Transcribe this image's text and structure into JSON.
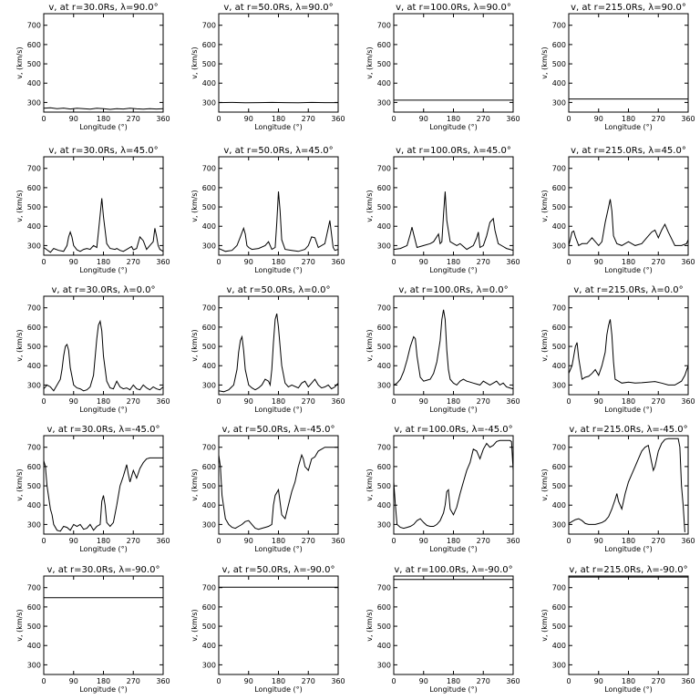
{
  "chart_data": [
    {
      "type": "line",
      "title": "v, at r=30.0Rs, λ=90.0°",
      "xlabel": "Longitude (°)",
      "ylabel": "v, (km/s)",
      "xlim": [
        0,
        360
      ],
      "ylim": [
        250,
        760
      ],
      "x": [
        0,
        20,
        40,
        60,
        80,
        100,
        120,
        140,
        160,
        180,
        200,
        220,
        240,
        260,
        280,
        300,
        320,
        340,
        360
      ],
      "y": [
        270,
        272,
        268,
        271,
        266,
        270,
        268,
        265,
        270,
        268,
        264,
        268,
        266,
        270,
        267,
        265,
        268,
        266,
        268
      ]
    },
    {
      "type": "line",
      "title": "v, at r=50.0Rs, λ=90.0°",
      "xlabel": "Longitude (°)",
      "ylabel": "v, (km/s)",
      "xlim": [
        0,
        360
      ],
      "ylim": [
        250,
        760
      ],
      "x": [
        0,
        40,
        80,
        120,
        160,
        200,
        240,
        280,
        320,
        360
      ],
      "y": [
        299,
        300,
        298,
        299,
        300,
        299,
        298,
        300,
        299,
        299
      ]
    },
    {
      "type": "line",
      "title": "v, at r=100.0Rs, λ=90.0°",
      "xlabel": "Longitude (°)",
      "ylabel": "v, (km/s)",
      "xlim": [
        0,
        360
      ],
      "ylim": [
        250,
        760
      ],
      "x": [
        0,
        360
      ],
      "y": [
        312,
        312
      ]
    },
    {
      "type": "line",
      "title": "v, at r=215.0Rs, λ=90.0°",
      "xlabel": "Longitude (°)",
      "ylabel": "v, (km/s)",
      "xlim": [
        0,
        360
      ],
      "ylim": [
        250,
        760
      ],
      "x": [
        0,
        360
      ],
      "y": [
        318,
        318
      ]
    },
    {
      "type": "line",
      "title": "v, at r=30.0Rs, λ=45.0°",
      "xlabel": "Longitude (°)",
      "ylabel": "v, (km/s)",
      "xlim": [
        0,
        360
      ],
      "ylim": [
        250,
        760
      ],
      "x": [
        0,
        10,
        20,
        30,
        45,
        60,
        70,
        75,
        80,
        85,
        90,
        100,
        110,
        120,
        130,
        140,
        150,
        160,
        165,
        170,
        175,
        180,
        190,
        200,
        215,
        220,
        230,
        240,
        255,
        265,
        270,
        280,
        290,
        300,
        310,
        320,
        330,
        335,
        340,
        345,
        350,
        360
      ],
      "y": [
        290,
        278,
        265,
        285,
        275,
        270,
        300,
        345,
        370,
        345,
        300,
        278,
        270,
        280,
        285,
        280,
        300,
        290,
        370,
        460,
        545,
        450,
        310,
        285,
        280,
        285,
        275,
        270,
        285,
        295,
        278,
        285,
        345,
        325,
        280,
        300,
        320,
        390,
        350,
        300,
        280,
        270
      ]
    },
    {
      "type": "line",
      "title": "v, at r=50.0Rs, λ=45.0°",
      "xlabel": "Longitude (°)",
      "ylabel": "v, (km/s)",
      "xlim": [
        0,
        360
      ],
      "ylim": [
        250,
        760
      ],
      "x": [
        0,
        20,
        40,
        55,
        65,
        75,
        80,
        85,
        90,
        100,
        120,
        140,
        150,
        160,
        170,
        175,
        180,
        185,
        190,
        200,
        220,
        240,
        260,
        270,
        280,
        290,
        300,
        320,
        330,
        335,
        340,
        345,
        350,
        360
      ],
      "y": [
        285,
        270,
        275,
        300,
        345,
        390,
        360,
        300,
        290,
        280,
        285,
        300,
        320,
        280,
        290,
        420,
        580,
        480,
        330,
        280,
        275,
        270,
        280,
        300,
        345,
        340,
        290,
        310,
        390,
        430,
        360,
        290,
        275,
        280
      ]
    },
    {
      "type": "line",
      "title": "v, at r=100.0Rs, λ=45.0°",
      "xlabel": "Longitude (°)",
      "ylabel": "v, (km/s)",
      "xlim": [
        0,
        360
      ],
      "ylim": [
        250,
        760
      ],
      "x": [
        0,
        20,
        40,
        50,
        55,
        60,
        70,
        90,
        110,
        120,
        135,
        140,
        145,
        150,
        155,
        160,
        170,
        190,
        200,
        220,
        240,
        250,
        255,
        260,
        270,
        280,
        290,
        300,
        305,
        315,
        330,
        340,
        350,
        360
      ],
      "y": [
        280,
        285,
        300,
        360,
        395,
        360,
        290,
        300,
        310,
        320,
        360,
        310,
        320,
        460,
        580,
        430,
        320,
        300,
        310,
        280,
        300,
        340,
        370,
        290,
        300,
        350,
        420,
        440,
        380,
        310,
        295,
        285,
        280,
        275
      ]
    },
    {
      "type": "line",
      "title": "v, at r=215.0Rs, λ=45.0°",
      "xlabel": "Longitude (°)",
      "ylabel": "v, (km/s)",
      "xlim": [
        0,
        360
      ],
      "ylim": [
        250,
        760
      ],
      "x": [
        0,
        10,
        15,
        20,
        30,
        40,
        55,
        70,
        90,
        100,
        110,
        120,
        125,
        130,
        135,
        145,
        160,
        180,
        200,
        220,
        235,
        250,
        260,
        270,
        280,
        290,
        300,
        320,
        340,
        355,
        360
      ],
      "y": [
        300,
        370,
        375,
        345,
        300,
        310,
        310,
        340,
        300,
        320,
        420,
        500,
        540,
        480,
        350,
        310,
        300,
        320,
        300,
        310,
        340,
        370,
        380,
        340,
        380,
        410,
        370,
        300,
        300,
        310,
        330
      ]
    },
    {
      "type": "line",
      "title": "v, at r=30.0Rs, λ=0.0°",
      "xlabel": "Longitude (°)",
      "ylabel": "v, (km/s)",
      "xlim": [
        0,
        360
      ],
      "ylim": [
        250,
        760
      ],
      "x": [
        0,
        10,
        20,
        30,
        40,
        50,
        55,
        60,
        65,
        70,
        75,
        80,
        90,
        100,
        110,
        120,
        130,
        140,
        150,
        160,
        165,
        170,
        175,
        180,
        190,
        200,
        210,
        220,
        230,
        240,
        250,
        260,
        270,
        280,
        290,
        300,
        310,
        320,
        330,
        340,
        350,
        360
      ],
      "y": [
        280,
        300,
        290,
        270,
        300,
        330,
        380,
        450,
        500,
        510,
        480,
        390,
        300,
        285,
        280,
        270,
        275,
        290,
        350,
        540,
        610,
        630,
        580,
        450,
        320,
        285,
        280,
        320,
        290,
        280,
        285,
        275,
        300,
        280,
        275,
        300,
        285,
        275,
        290,
        280,
        275,
        290
      ]
    },
    {
      "type": "line",
      "title": "v, at r=50.0Rs, λ=0.0°",
      "xlabel": "Longitude (°)",
      "ylabel": "v, (km/s)",
      "xlim": [
        0,
        360
      ],
      "ylim": [
        250,
        760
      ],
      "x": [
        0,
        15,
        30,
        45,
        55,
        60,
        65,
        70,
        75,
        80,
        90,
        100,
        110,
        120,
        130,
        140,
        150,
        155,
        160,
        165,
        170,
        175,
        180,
        190,
        200,
        210,
        220,
        240,
        250,
        260,
        270,
        280,
        290,
        300,
        310,
        320,
        330,
        340,
        350,
        360
      ],
      "y": [
        270,
        265,
        275,
        300,
        380,
        470,
        530,
        550,
        480,
        380,
        300,
        285,
        275,
        285,
        300,
        330,
        320,
        300,
        380,
        520,
        640,
        670,
        600,
        400,
        310,
        290,
        300,
        285,
        310,
        320,
        290,
        310,
        330,
        300,
        285,
        290,
        300,
        280,
        290,
        310
      ]
    },
    {
      "type": "line",
      "title": "v, at r=100.0Rs, λ=0.0°",
      "xlabel": "Longitude (°)",
      "ylabel": "v, (km/s)",
      "xlim": [
        0,
        360
      ],
      "ylim": [
        250,
        760
      ],
      "x": [
        0,
        10,
        20,
        30,
        40,
        50,
        60,
        65,
        70,
        80,
        90,
        100,
        110,
        120,
        130,
        140,
        145,
        150,
        155,
        160,
        165,
        170,
        180,
        190,
        200,
        210,
        220,
        230,
        240,
        250,
        260,
        270,
        280,
        290,
        300,
        310,
        320,
        330,
        340,
        350,
        360
      ],
      "y": [
        300,
        310,
        330,
        370,
        430,
        500,
        550,
        540,
        450,
        340,
        320,
        325,
        330,
        360,
        420,
        530,
        640,
        690,
        640,
        480,
        380,
        330,
        310,
        300,
        320,
        330,
        320,
        315,
        310,
        305,
        300,
        320,
        310,
        300,
        310,
        320,
        300,
        310,
        290,
        285,
        280
      ]
    },
    {
      "type": "line",
      "title": "v, at r=215.0Rs, λ=0.0°",
      "xlabel": "Longitude (°)",
      "ylabel": "v, (km/s)",
      "xlim": [
        0,
        360
      ],
      "ylim": [
        250,
        760
      ],
      "x": [
        0,
        10,
        15,
        20,
        25,
        30,
        40,
        50,
        60,
        70,
        80,
        90,
        100,
        110,
        115,
        120,
        125,
        130,
        135,
        140,
        150,
        160,
        180,
        200,
        220,
        240,
        260,
        280,
        300,
        320,
        340,
        350,
        360
      ],
      "y": [
        360,
        400,
        450,
        500,
        520,
        440,
        330,
        340,
        345,
        360,
        380,
        350,
        400,
        470,
        560,
        610,
        640,
        560,
        420,
        330,
        320,
        310,
        315,
        310,
        312,
        315,
        318,
        310,
        300,
        300,
        320,
        350,
        400
      ]
    },
    {
      "type": "line",
      "title": "v, at r=30.0Rs, λ=-45.0°",
      "xlabel": "Longitude (°)",
      "ylabel": "v, (km/s)",
      "xlim": [
        0,
        360
      ],
      "ylim": [
        250,
        760
      ],
      "x": [
        0,
        5,
        10,
        20,
        25,
        30,
        40,
        50,
        60,
        70,
        80,
        90,
        100,
        110,
        120,
        130,
        140,
        150,
        160,
        170,
        175,
        180,
        185,
        190,
        200,
        210,
        220,
        230,
        240,
        250,
        255,
        260,
        270,
        280,
        290,
        300,
        310,
        320,
        330,
        340,
        350,
        360
      ],
      "y": [
        630,
        600,
        500,
        380,
        350,
        300,
        270,
        265,
        290,
        285,
        270,
        300,
        290,
        300,
        275,
        280,
        300,
        270,
        290,
        300,
        420,
        450,
        400,
        310,
        290,
        310,
        400,
        500,
        550,
        610,
        560,
        520,
        580,
        540,
        590,
        620,
        640,
        645,
        645,
        645,
        645,
        645
      ]
    },
    {
      "type": "line",
      "title": "v, at r=50.0Rs, λ=-45.0°",
      "xlabel": "Longitude (°)",
      "ylabel": "v, (km/s)",
      "xlim": [
        0,
        360
      ],
      "ylim": [
        250,
        760
      ],
      "x": [
        0,
        5,
        10,
        20,
        30,
        40,
        50,
        60,
        70,
        80,
        90,
        100,
        110,
        120,
        130,
        140,
        150,
        160,
        165,
        170,
        180,
        190,
        200,
        210,
        220,
        230,
        240,
        250,
        255,
        260,
        270,
        280,
        290,
        300,
        310,
        320,
        330,
        340,
        350,
        360
      ],
      "y": [
        660,
        600,
        450,
        330,
        300,
        285,
        280,
        290,
        300,
        315,
        320,
        300,
        280,
        275,
        280,
        285,
        290,
        300,
        400,
        450,
        480,
        350,
        330,
        400,
        470,
        520,
        600,
        660,
        640,
        600,
        580,
        640,
        650,
        680,
        690,
        700,
        700,
        700,
        700,
        700
      ]
    },
    {
      "type": "line",
      "title": "v, at r=100.0Rs, λ=-45.0°",
      "xlabel": "Longitude (°)",
      "ylabel": "v, (km/s)",
      "xlim": [
        0,
        360
      ],
      "ylim": [
        250,
        760
      ],
      "x": [
        0,
        5,
        10,
        20,
        30,
        40,
        50,
        60,
        70,
        80,
        90,
        100,
        110,
        120,
        130,
        140,
        150,
        155,
        160,
        165,
        170,
        180,
        190,
        200,
        210,
        220,
        230,
        240,
        250,
        260,
        270,
        280,
        290,
        300,
        310,
        320,
        330,
        340,
        350,
        355,
        360
      ],
      "y": [
        520,
        400,
        300,
        285,
        280,
        285,
        290,
        300,
        320,
        330,
        310,
        295,
        290,
        290,
        300,
        320,
        360,
        400,
        470,
        480,
        380,
        350,
        390,
        460,
        520,
        580,
        620,
        690,
        680,
        640,
        690,
        720,
        700,
        710,
        730,
        735,
        735,
        735,
        735,
        730,
        580
      ]
    },
    {
      "type": "line",
      "title": "v, at r=215.0Rs, λ=-45.0°",
      "xlabel": "Longitude (°)",
      "ylabel": "v, (km/s)",
      "xlim": [
        0,
        360
      ],
      "ylim": [
        250,
        760
      ],
      "x": [
        0,
        10,
        20,
        30,
        40,
        50,
        60,
        70,
        80,
        90,
        100,
        110,
        120,
        130,
        140,
        145,
        150,
        160,
        170,
        180,
        190,
        200,
        210,
        220,
        230,
        240,
        250,
        255,
        260,
        270,
        280,
        290,
        300,
        310,
        320,
        330,
        335,
        340,
        345,
        350
      ],
      "y": [
        305,
        315,
        325,
        330,
        320,
        305,
        300,
        300,
        300,
        305,
        310,
        320,
        340,
        380,
        430,
        460,
        420,
        380,
        460,
        520,
        560,
        600,
        640,
        680,
        700,
        710,
        620,
        580,
        600,
        680,
        720,
        740,
        745,
        745,
        745,
        745,
        700,
        500,
        400,
        260
      ]
    },
    {
      "type": "line",
      "title": "v, at r=30.0Rs, λ=-90.0°",
      "xlabel": "Longitude (°)",
      "ylabel": "v, (km/s)",
      "xlim": [
        0,
        360
      ],
      "ylim": [
        250,
        760
      ],
      "x": [
        0,
        360
      ],
      "y": [
        648,
        648
      ]
    },
    {
      "type": "line",
      "title": "v, at r=50.0Rs, λ=-90.0°",
      "xlabel": "Longitude (°)",
      "ylabel": "v, (km/s)",
      "xlim": [
        0,
        360
      ],
      "ylim": [
        250,
        760
      ],
      "x": [
        0,
        360
      ],
      "y": [
        702,
        702
      ]
    },
    {
      "type": "line",
      "title": "v, at r=100.0Rs, λ=-90.0°",
      "xlabel": "Longitude (°)",
      "ylabel": "v, (km/s)",
      "xlim": [
        0,
        360
      ],
      "ylim": [
        250,
        760
      ],
      "x": [
        0,
        360
      ],
      "y": [
        742,
        742
      ]
    },
    {
      "type": "line",
      "title": "v, at r=215.0Rs, λ=-90.0°",
      "xlabel": "Longitude (°)",
      "ylabel": "v, (km/s)",
      "xlim": [
        0,
        360
      ],
      "ylim": [
        250,
        760
      ],
      "x": [
        0,
        360
      ],
      "y": [
        755,
        755
      ]
    }
  ],
  "axes": {
    "xticks": [
      0,
      90,
      180,
      270,
      360
    ],
    "yticks": [
      300,
      400,
      500,
      600,
      700
    ]
  },
  "style": {
    "line_color": "#000000",
    "background": "#ffffff"
  }
}
